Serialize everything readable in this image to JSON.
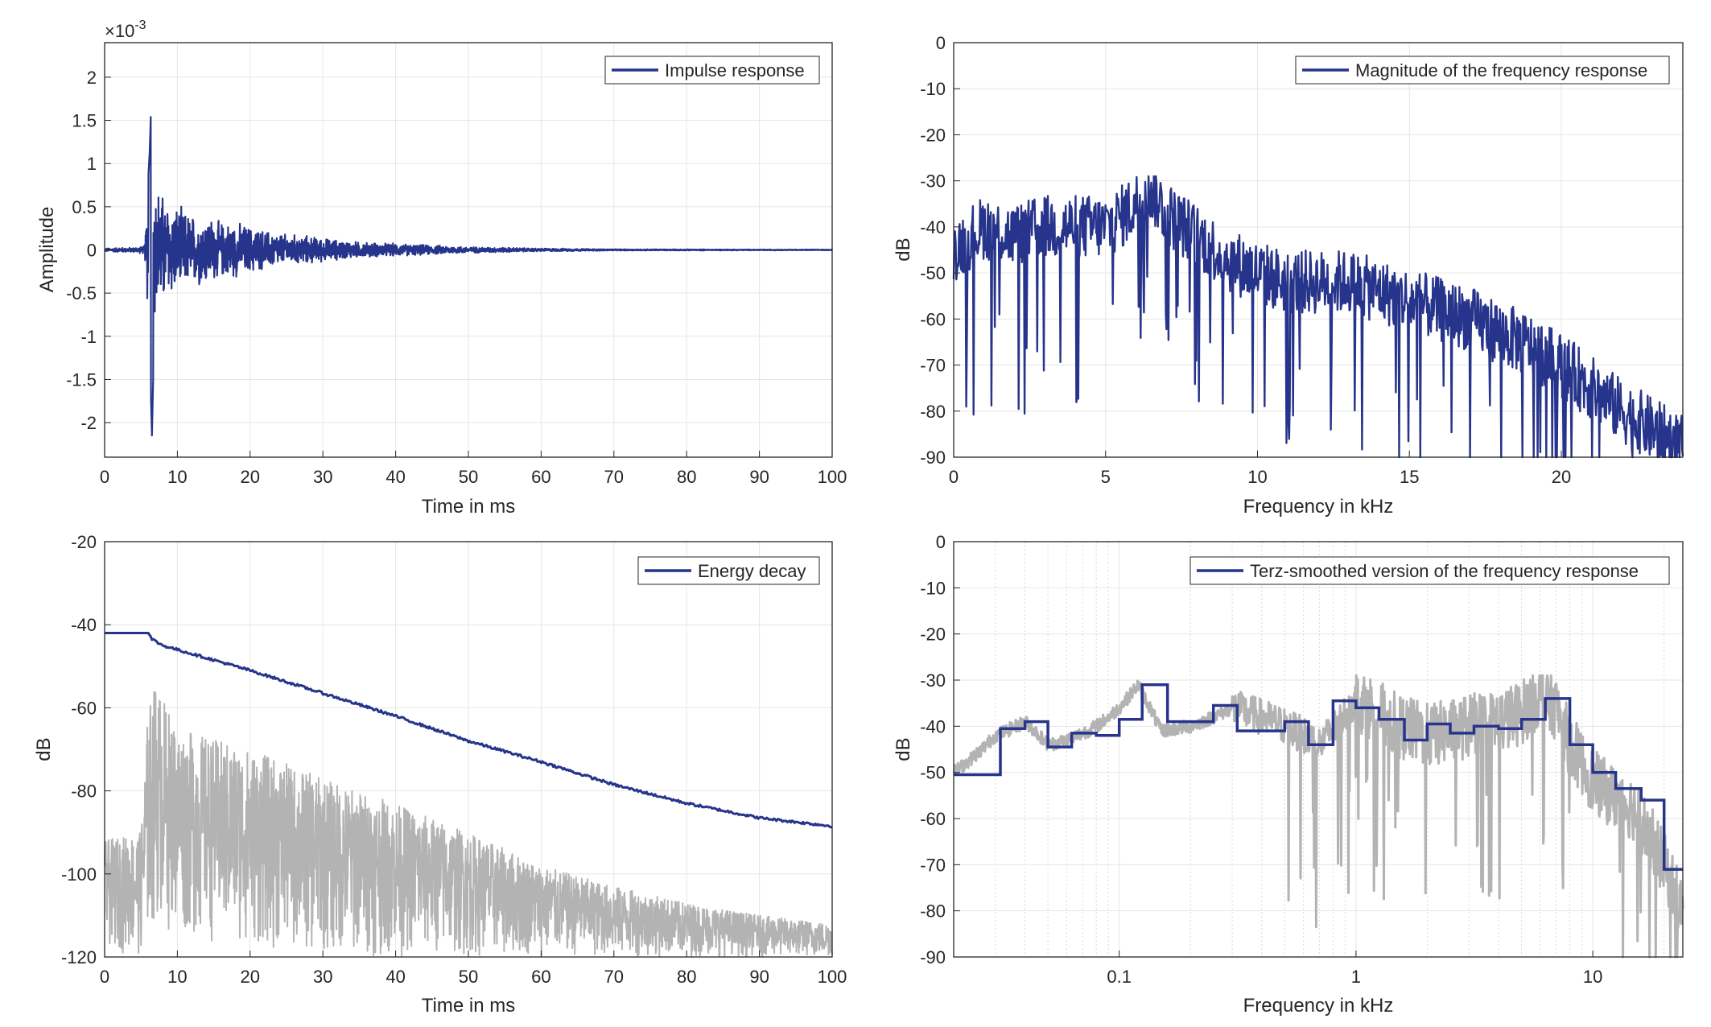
{
  "figure": {
    "panels": [
      {
        "id": "impulse",
        "exponent_label": "×10",
        "exponent_power": "-3",
        "xlabel": "Time in ms",
        "ylabel": "Amplitude",
        "legend": "Impulse response",
        "xticks": [
          "0",
          "10",
          "20",
          "30",
          "40",
          "50",
          "60",
          "70",
          "80",
          "90",
          "100"
        ],
        "yticks": [
          "2",
          "1.5",
          "1",
          "0.5",
          "0",
          "-0.5",
          "-1",
          "-1.5",
          "-2"
        ]
      },
      {
        "id": "magnitude",
        "xlabel": "Frequency in kHz",
        "ylabel": "dB",
        "legend": "Magnitude of the frequency response",
        "xticks": [
          "0",
          "5",
          "10",
          "15",
          "20"
        ],
        "yticks": [
          "0",
          "-10",
          "-20",
          "-30",
          "-40",
          "-50",
          "-60",
          "-70",
          "-80",
          "-90"
        ]
      },
      {
        "id": "energy",
        "xlabel": "Time in ms",
        "ylabel": "dB",
        "legend": "Energy decay",
        "xticks": [
          "0",
          "10",
          "20",
          "30",
          "40",
          "50",
          "60",
          "70",
          "80",
          "90",
          "100"
        ],
        "yticks": [
          "-20",
          "-40",
          "-60",
          "-80",
          "-100",
          "-120"
        ]
      },
      {
        "id": "terz",
        "xlabel": "Frequency in kHz",
        "ylabel": "dB",
        "legend": "Terz-smoothed version of the frequency response",
        "xticks": [
          "0.1",
          "1",
          "10"
        ],
        "yticks": [
          "0",
          "-10",
          "-20",
          "-30",
          "-40",
          "-50",
          "-60",
          "-70",
          "-80",
          "-90"
        ]
      }
    ]
  },
  "colors": {
    "series": "#27348b",
    "gray": "#b3b3b3",
    "grid": "#e6e6e6",
    "axis": "#262626"
  },
  "chart_data": [
    {
      "type": "line",
      "xlabel": "Time in ms",
      "ylabel": "Amplitude",
      "xlim": [
        0,
        100
      ],
      "ylim": [
        -2.4,
        2.4
      ],
      "y_scale_factor": "1e-3",
      "grid": true,
      "legend_position": "top-right",
      "series": [
        {
          "name": "Impulse response",
          "x": [
            0,
            2,
            4,
            5.5,
            6.2,
            6.5,
            6.8,
            7.5,
            8.5,
            10,
            12,
            14,
            16,
            18,
            20,
            22,
            25,
            28,
            30,
            35,
            40,
            45,
            50,
            55,
            60,
            70,
            80,
            90,
            100
          ],
          "envelope": [
            0.02,
            0.03,
            0.03,
            0.05,
            1.2,
            2.15,
            1.0,
            0.8,
            0.65,
            0.55,
            0.45,
            0.45,
            0.35,
            0.35,
            0.3,
            0.25,
            0.2,
            0.18,
            0.15,
            0.1,
            0.08,
            0.06,
            0.04,
            0.03,
            0.02,
            0.01,
            0.008,
            0.006,
            0.005
          ]
        }
      ]
    },
    {
      "type": "line",
      "xlabel": "Frequency in kHz",
      "ylabel": "dB",
      "xlim": [
        0,
        24
      ],
      "ylim": [
        -90,
        0
      ],
      "grid": true,
      "legend_position": "top-right",
      "series": [
        {
          "name": "Magnitude of the frequency response",
          "x": [
            0,
            1,
            2,
            3,
            4,
            5,
            5.5,
            6,
            6.5,
            7,
            8,
            9,
            10,
            11,
            12,
            13,
            14,
            15,
            16,
            17,
            18,
            19,
            20,
            21,
            22,
            23,
            24
          ],
          "y": [
            -45,
            -40,
            -42,
            -40,
            -40,
            -40,
            -38,
            -35,
            -32,
            -37,
            -42,
            -47,
            -50,
            -52,
            -52,
            -52,
            -54,
            -56,
            -58,
            -60,
            -63,
            -66,
            -70,
            -75,
            -80,
            -84,
            -88
          ],
          "dips": [
            -73,
            -70,
            -85,
            -80,
            -75,
            -80,
            -82,
            -85,
            -90,
            -90
          ]
        }
      ]
    },
    {
      "type": "line",
      "xlabel": "Time in ms",
      "ylabel": "dB",
      "xlim": [
        0,
        100
      ],
      "ylim": [
        -120,
        -20
      ],
      "grid": true,
      "legend_position": "top-right",
      "series": [
        {
          "name": "Energy decay",
          "x": [
            0,
            6,
            6.5,
            8,
            10,
            20,
            30,
            40,
            50,
            60,
            70,
            80,
            90,
            100
          ],
          "y": [
            -42,
            -42,
            -43.5,
            -45,
            -46,
            -51,
            -56.5,
            -62,
            -68,
            -73,
            -78.5,
            -83,
            -86.5,
            -88.5
          ]
        },
        {
          "x": [
            0,
            5,
            6,
            7,
            10,
            20,
            30,
            40,
            50,
            60,
            70,
            80,
            90,
            100
          ],
          "y_upper": [
            -92,
            -90,
            -60,
            -54,
            -65,
            -70,
            -77,
            -83,
            -90,
            -98,
            -103,
            -107,
            -110,
            -112
          ],
          "y_lower": [
            -118,
            -120,
            -118,
            -112,
            -115,
            -118,
            -120,
            -120,
            -120,
            -120,
            -120,
            -120,
            -120,
            -120
          ]
        }
      ]
    },
    {
      "type": "line",
      "xlabel": "Frequency in kHz",
      "ylabel": "dB",
      "xscale": "log",
      "xlim": [
        0.02,
        24
      ],
      "ylim": [
        -90,
        0
      ],
      "grid": true,
      "legend_position": "top-right",
      "series": [
        {
          "name": "Terz-smoothed version of the frequency response",
          "band_edges": [
            0.02,
            0.0315,
            0.04,
            0.05,
            0.063,
            0.08,
            0.1,
            0.125,
            0.16,
            0.2,
            0.25,
            0.315,
            0.4,
            0.5,
            0.63,
            0.8,
            1.0,
            1.25,
            1.6,
            2.0,
            2.5,
            3.15,
            4.0,
            5.0,
            6.3,
            8.0,
            10.0,
            12.5,
            16.0,
            20.0,
            24.0
          ],
          "y": [
            -50.5,
            -40.5,
            -39,
            -44.5,
            -41.5,
            -42,
            -38.5,
            -31,
            -39,
            -39,
            -35.5,
            -41,
            -41,
            -39,
            -44,
            -34.5,
            -36,
            -38.5,
            -43,
            -39.5,
            -41.5,
            -40,
            -40.5,
            -38.5,
            -34,
            -44,
            -50,
            -53.5,
            -56,
            -71
          ]
        },
        {
          "x": [
            0.02,
            0.03,
            0.04,
            0.05,
            0.06,
            0.08,
            0.1,
            0.12,
            0.15,
            0.2,
            0.3,
            0.5,
            0.7,
            1,
            1.5,
            2,
            3,
            4,
            5,
            6,
            7,
            8,
            10,
            12,
            15,
            20,
            24
          ],
          "y": [
            -50,
            -42,
            -39,
            -44,
            -43,
            -40,
            -36,
            -31,
            -41,
            -40,
            -36,
            -40,
            -44,
            -34,
            -40,
            -42,
            -40,
            -39,
            -37,
            -33,
            -36,
            -44,
            -52,
            -55,
            -58,
            -70,
            -80
          ]
        }
      ]
    }
  ]
}
